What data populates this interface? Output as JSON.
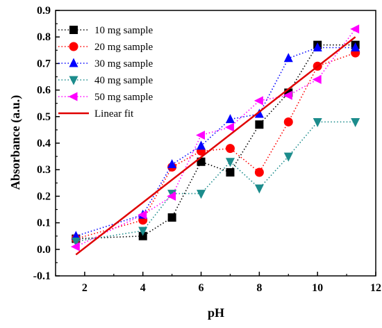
{
  "chart_data": {
    "type": "scatter",
    "xlabel": "pH",
    "ylabel": "Absorbance (a.u.)",
    "xlim": [
      1,
      12
    ],
    "ylim": [
      -0.1,
      0.9
    ],
    "xticks": [
      "2",
      "4",
      "6",
      "8",
      "10",
      "12"
    ],
    "yticks": [
      "-0.1",
      "0.0",
      "0.1",
      "0.2",
      "0.3",
      "0.4",
      "0.5",
      "0.6",
      "0.7",
      "0.8",
      "0.9"
    ],
    "legend_position": "top-left",
    "grid": false,
    "series": [
      {
        "name": "10 mg sample",
        "color": "#000000",
        "marker": "square",
        "points": [
          [
            1.7,
            0.04
          ],
          [
            4,
            0.05
          ],
          [
            5,
            0.12
          ],
          [
            6,
            0.33
          ],
          [
            7,
            0.29
          ],
          [
            8,
            0.47
          ],
          [
            9,
            0.59
          ],
          [
            10,
            0.77
          ],
          [
            11.3,
            0.77
          ]
        ]
      },
      {
        "name": "20 mg sample",
        "color": "#ff0000",
        "marker": "circle",
        "points": [
          [
            1.7,
            0.04
          ],
          [
            4,
            0.11
          ],
          [
            5,
            0.31
          ],
          [
            6,
            0.37
          ],
          [
            7,
            0.38
          ],
          [
            8,
            0.29
          ],
          [
            9,
            0.48
          ],
          [
            10,
            0.69
          ],
          [
            11.3,
            0.74
          ]
        ]
      },
      {
        "name": "30 mg sample",
        "color": "#0000ff",
        "marker": "triangle-up",
        "points": [
          [
            1.7,
            0.05
          ],
          [
            4,
            0.13
          ],
          [
            5,
            0.32
          ],
          [
            6,
            0.39
          ],
          [
            7,
            0.49
          ],
          [
            8,
            0.51
          ],
          [
            9,
            0.72
          ],
          [
            10,
            0.76
          ],
          [
            11.3,
            0.76
          ]
        ]
      },
      {
        "name": "40 mg sample",
        "color": "#1c8c8c",
        "marker": "triangle-down",
        "points": [
          [
            1.7,
            0.03
          ],
          [
            4,
            0.07
          ],
          [
            5,
            0.21
          ],
          [
            6,
            0.21
          ],
          [
            7,
            0.33
          ],
          [
            8,
            0.23
          ],
          [
            9,
            0.35
          ],
          [
            10,
            0.48
          ],
          [
            11.3,
            0.48
          ]
        ]
      },
      {
        "name": "50 mg sample",
        "color": "#ff00ff",
        "marker": "triangle-left",
        "points": [
          [
            1.7,
            0.01
          ],
          [
            4,
            0.13
          ],
          [
            5,
            0.2
          ],
          [
            6,
            0.43
          ],
          [
            7,
            0.46
          ],
          [
            8,
            0.56
          ],
          [
            9,
            0.58
          ],
          [
            10,
            0.64
          ],
          [
            11.3,
            0.83
          ]
        ]
      }
    ],
    "fit": {
      "name": "Linear fit",
      "color": "#e00000",
      "from": [
        1.7,
        -0.02
      ],
      "to": [
        11.3,
        0.8
      ]
    }
  }
}
